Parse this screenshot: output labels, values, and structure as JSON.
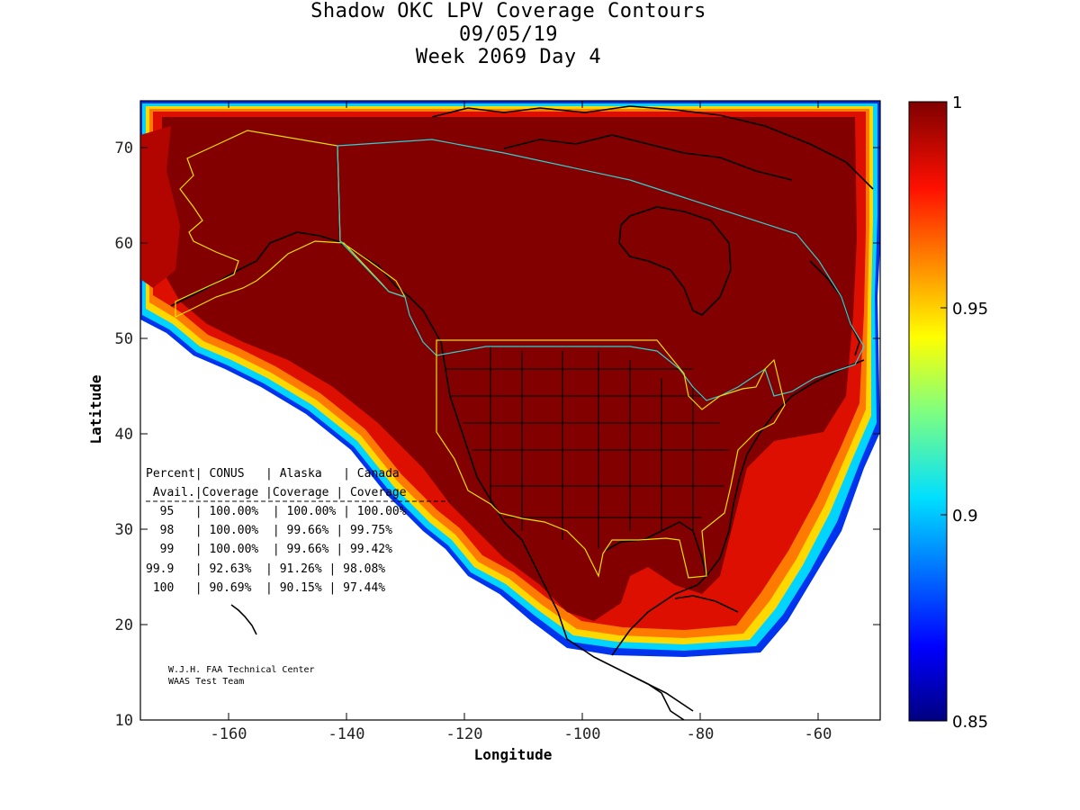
{
  "title": {
    "line1": "Shadow OKC LPV Coverage Contours",
    "line2": "09/05/19",
    "line3": "Week 2069 Day 4"
  },
  "axes": {
    "xlabel": "Longitude",
    "ylabel": "Latitude",
    "x_ticks": [
      "-160",
      "-140",
      "-120",
      "-100",
      "-80",
      "-60"
    ],
    "y_ticks": [
      "10",
      "20",
      "30",
      "40",
      "50",
      "60",
      "70"
    ],
    "xlim": [
      -175,
      -50
    ],
    "ylim": [
      10,
      75
    ]
  },
  "colorbar": {
    "ticks": [
      "1",
      "0.95",
      "0.9",
      "0.85"
    ],
    "range": [
      0.85,
      1.0
    ],
    "colormap": "jet"
  },
  "coverage_table": {
    "header1": "Percent| CONUS   | Alaska   | Canada",
    "header2": " Avail.|Coverage |Coverage | Coverage",
    "rows": [
      "  95   | 100.00%  | 100.00% | 100.00%",
      "  98   | 100.00%  | 99.66% | 99.75%",
      "  99   | 100.00%  | 99.66% | 99.42%",
      "99.9   | 92.63%  | 91.26% | 98.08%",
      " 100   | 90.69%  | 90.15% | 97.44%"
    ]
  },
  "credit": {
    "line1": "W.J.H. FAA Technical Center",
    "line2": "WAAS Test Team"
  },
  "colors": {
    "dark_red": "#800000",
    "red": "#cc0000",
    "orange_red": "#ee2200",
    "orange": "#ff7700",
    "yellow": "#ffdd00",
    "cyan": "#00ccff",
    "blue": "#0044ff",
    "navy": "#000088",
    "service_volume_yellow": "#e8e000",
    "service_volume_cyan": "#30d0d0"
  }
}
